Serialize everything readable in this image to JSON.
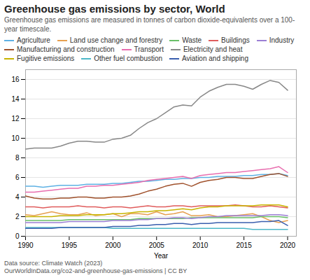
{
  "chart_data": {
    "type": "line",
    "title": "Greenhouse gas emissions by sector, World",
    "subtitle": "Greenhouse gas emissions are measured in tonnes of carbon dioxide-equivalents over a 100-year timescale.",
    "xlabel": "Year",
    "footnotes": [
      "Data source: Climate Watch (2023)",
      "OurWorldInData.org/co2-and-greenhouse-gas-emissions | CC BY"
    ],
    "x": [
      1990,
      1991,
      1992,
      1993,
      1994,
      1995,
      1996,
      1997,
      1998,
      1999,
      2000,
      2001,
      2002,
      2003,
      2004,
      2005,
      2006,
      2007,
      2008,
      2009,
      2010,
      2011,
      2012,
      2013,
      2014,
      2015,
      2016,
      2017,
      2018,
      2019,
      2020
    ],
    "series": [
      {
        "name": "Agriculture",
        "color": "#5eb1e4",
        "values": [
          5.1,
          5.1,
          5.0,
          5.1,
          5.2,
          5.2,
          5.2,
          5.3,
          5.3,
          5.3,
          5.4,
          5.4,
          5.5,
          5.6,
          5.6,
          5.7,
          5.8,
          5.8,
          5.9,
          5.9,
          6.0,
          6.0,
          6.1,
          6.1,
          6.1,
          6.2,
          6.2,
          6.3,
          6.3,
          6.4,
          6.2
        ]
      },
      {
        "name": "Land use change and forestry",
        "color": "#e6a050",
        "values": [
          2.2,
          2.1,
          2.3,
          2.5,
          2.3,
          2.2,
          2.2,
          2.4,
          2.1,
          2.2,
          2.3,
          2.0,
          2.3,
          2.3,
          2.2,
          2.5,
          2.2,
          2.3,
          2.5,
          2.1,
          2.1,
          2.2,
          2.0,
          2.0,
          2.1,
          2.2,
          2.3,
          2.0,
          1.6,
          1.4,
          1.6
        ]
      },
      {
        "name": "Waste",
        "color": "#6abf69",
        "values": [
          1.6,
          1.6,
          1.6,
          1.6,
          1.6,
          1.7,
          1.7,
          1.7,
          1.7,
          1.7,
          1.7,
          1.7,
          1.7,
          1.8,
          1.8,
          1.8,
          1.8,
          1.8,
          1.8,
          1.9,
          1.9,
          1.9,
          1.9,
          1.9,
          1.9,
          1.9,
          1.9,
          2.0,
          2.0,
          2.0,
          1.9
        ]
      },
      {
        "name": "Buildings",
        "color": "#e05c5c",
        "values": [
          3.0,
          3.0,
          2.9,
          3.0,
          3.0,
          3.0,
          3.1,
          3.0,
          3.0,
          2.9,
          3.0,
          3.0,
          2.9,
          3.0,
          3.1,
          3.0,
          3.0,
          3.1,
          3.1,
          3.0,
          3.1,
          3.1,
          3.1,
          3.1,
          3.2,
          3.1,
          3.0,
          3.0,
          3.1,
          3.0,
          2.9
        ]
      },
      {
        "name": "Industry",
        "color": "#9b7fd4",
        "values": [
          1.4,
          1.4,
          1.4,
          1.4,
          1.4,
          1.5,
          1.5,
          1.5,
          1.5,
          1.5,
          1.6,
          1.6,
          1.6,
          1.7,
          1.7,
          1.8,
          1.8,
          1.9,
          1.9,
          1.8,
          1.9,
          2.0,
          2.0,
          2.1,
          2.1,
          2.1,
          2.1,
          2.1,
          2.2,
          2.2,
          2.1
        ]
      },
      {
        "name": "Manufacturing and construction",
        "color": "#a0522d",
        "values": [
          4.1,
          3.9,
          3.8,
          3.8,
          3.9,
          3.9,
          4.0,
          4.0,
          3.9,
          3.9,
          4.0,
          4.0,
          4.1,
          4.3,
          4.6,
          4.8,
          5.1,
          5.3,
          5.4,
          5.1,
          5.5,
          5.7,
          5.8,
          6.0,
          6.0,
          5.9,
          5.9,
          6.1,
          6.3,
          6.4,
          6.1
        ]
      },
      {
        "name": "Transport",
        "color": "#e86eaf",
        "values": [
          4.5,
          4.5,
          4.6,
          4.7,
          4.8,
          4.9,
          4.9,
          5.1,
          5.1,
          5.2,
          5.2,
          5.3,
          5.4,
          5.5,
          5.7,
          5.8,
          5.9,
          6.0,
          6.1,
          5.9,
          6.2,
          6.3,
          6.4,
          6.5,
          6.5,
          6.6,
          6.7,
          6.8,
          6.9,
          7.1,
          6.5
        ]
      },
      {
        "name": "Electricity and heat",
        "color": "#888888",
        "values": [
          8.9,
          9.0,
          9.0,
          9.0,
          9.2,
          9.5,
          9.7,
          9.7,
          9.6,
          9.6,
          9.9,
          10.0,
          10.3,
          11.0,
          11.6,
          12.0,
          12.6,
          13.2,
          13.4,
          13.3,
          14.2,
          14.8,
          15.2,
          15.5,
          15.5,
          15.3,
          15.0,
          15.5,
          15.9,
          15.7,
          14.9
        ]
      },
      {
        "name": "Fugitive emissions",
        "color": "#c8b400",
        "values": [
          2.0,
          2.0,
          2.0,
          2.0,
          2.1,
          2.1,
          2.1,
          2.2,
          2.2,
          2.2,
          2.3,
          2.3,
          2.4,
          2.5,
          2.5,
          2.6,
          2.6,
          2.7,
          2.8,
          2.7,
          2.9,
          3.0,
          3.0,
          3.1,
          3.1,
          3.1,
          3.1,
          3.2,
          3.2,
          3.2,
          3.0
        ]
      },
      {
        "name": "Other fuel combustion",
        "color": "#4eb8c8",
        "values": [
          0.9,
          0.9,
          0.9,
          0.9,
          0.9,
          0.9,
          0.9,
          0.9,
          0.9,
          0.9,
          0.8,
          0.8,
          0.8,
          0.8,
          0.8,
          0.8,
          0.8,
          0.8,
          0.8,
          0.8,
          0.8,
          0.8,
          0.8,
          0.8,
          0.8,
          0.8,
          0.7,
          0.7,
          0.7,
          0.7,
          0.7
        ]
      },
      {
        "name": "Aviation and shipping",
        "color": "#3a5fae",
        "values": [
          0.8,
          0.8,
          0.8,
          0.8,
          0.9,
          0.9,
          0.9,
          0.9,
          0.9,
          0.9,
          1.0,
          1.0,
          1.0,
          1.1,
          1.1,
          1.2,
          1.2,
          1.3,
          1.3,
          1.2,
          1.3,
          1.3,
          1.4,
          1.4,
          1.4,
          1.4,
          1.4,
          1.5,
          1.5,
          1.6,
          1.1
        ]
      }
    ],
    "xlim": [
      1990,
      2021
    ],
    "xticks": [
      1990,
      1995,
      2000,
      2005,
      2010,
      2015,
      2020
    ],
    "ylim": [
      0,
      17
    ],
    "yticks": [
      0,
      2,
      4,
      6,
      8,
      10,
      12,
      14,
      16
    ],
    "grid": "y",
    "legend": "upper left"
  }
}
